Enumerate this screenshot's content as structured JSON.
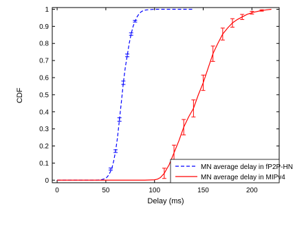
{
  "chart_data": {
    "type": "line",
    "title": "",
    "xlabel": "Delay (ms)",
    "ylabel": "CDF",
    "xlim": [
      -5,
      228
    ],
    "ylim": [
      -0.015,
      1.01
    ],
    "xticks": [
      0,
      50,
      100,
      150,
      200
    ],
    "xtick_labels": [
      "0",
      "50",
      "100",
      "150",
      "200"
    ],
    "yticks": [
      0,
      0.1,
      0.2,
      0.3,
      0.4,
      0.5,
      0.6,
      0.7,
      0.8,
      0.9,
      1
    ],
    "ytick_labels": [
      "0",
      "0.1",
      "0.2",
      "0.3",
      "0.4",
      "0.5",
      "0.6",
      "0.7",
      "0.8",
      "0.9",
      "1"
    ],
    "grid": false,
    "legend_position": "lower-right",
    "series": [
      {
        "name": "MN average delay in fP2P-HN",
        "color": "#0000ff",
        "style": "dashed",
        "x": [
          0,
          40,
          45,
          50,
          53,
          56,
          58,
          60,
          62,
          64,
          66,
          68,
          70,
          72,
          74,
          76,
          78,
          80,
          82,
          84,
          86,
          88,
          90,
          95,
          100,
          110,
          120,
          130,
          140
        ],
        "y": [
          0,
          0,
          0.002,
          0.01,
          0.03,
          0.065,
          0.11,
          0.17,
          0.25,
          0.355,
          0.46,
          0.57,
          0.66,
          0.73,
          0.8,
          0.855,
          0.9,
          0.93,
          0.955,
          0.972,
          0.984,
          0.991,
          0.995,
          0.998,
          1.0,
          1.0,
          1.0,
          1.0,
          1.0
        ],
        "markers": [
          {
            "x": 55,
            "y": 0.065,
            "err": 0.006
          },
          {
            "x": 60,
            "y": 0.17,
            "err": 0.008
          },
          {
            "x": 64,
            "y": 0.355,
            "err": 0.01
          },
          {
            "x": 68,
            "y": 0.57,
            "err": 0.01
          },
          {
            "x": 72,
            "y": 0.73,
            "err": 0.008
          },
          {
            "x": 76,
            "y": 0.855,
            "err": 0.007
          },
          {
            "x": 80,
            "y": 0.93,
            "err": 0.005
          }
        ]
      },
      {
        "name": "MN average delay in MIPv4",
        "color": "#ff0000",
        "style": "solid",
        "x": [
          0,
          90,
          100,
          103,
          106,
          110,
          115,
          120,
          125,
          130,
          135,
          140,
          145,
          150,
          155,
          160,
          165,
          170,
          175,
          180,
          185,
          190,
          195,
          200,
          210,
          220
        ],
        "y": [
          0,
          0,
          0.002,
          0.006,
          0.015,
          0.04,
          0.09,
          0.16,
          0.23,
          0.31,
          0.37,
          0.42,
          0.5,
          0.57,
          0.655,
          0.74,
          0.8,
          0.855,
          0.89,
          0.92,
          0.94,
          0.955,
          0.97,
          0.98,
          0.993,
          1.0
        ],
        "markers": [
          {
            "x": 110,
            "y": 0.04,
            "err": 0.03
          },
          {
            "x": 120,
            "y": 0.16,
            "err": 0.045
          },
          {
            "x": 130,
            "y": 0.31,
            "err": 0.045
          },
          {
            "x": 140,
            "y": 0.42,
            "err": 0.05
          },
          {
            "x": 150,
            "y": 0.57,
            "err": 0.045
          },
          {
            "x": 160,
            "y": 0.74,
            "err": 0.045
          },
          {
            "x": 170,
            "y": 0.855,
            "err": 0.035
          },
          {
            "x": 180,
            "y": 0.92,
            "err": 0.025
          },
          {
            "x": 190,
            "y": 0.955,
            "err": 0.015
          },
          {
            "x": 200,
            "y": 0.98,
            "err": 0.008
          },
          {
            "x": 210,
            "y": 0.993,
            "err": 0.004
          }
        ]
      }
    ]
  }
}
